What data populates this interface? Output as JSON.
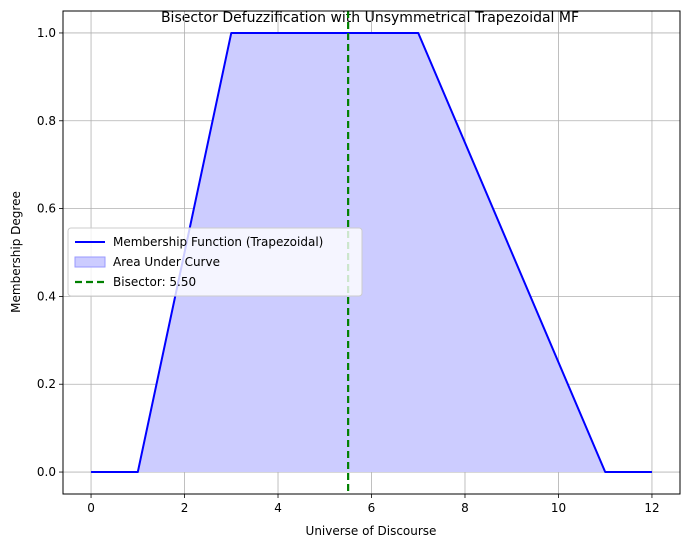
{
  "chart_data": {
    "type": "line",
    "title": "Bisector Defuzzification with Unsymmetrical Trapezoidal MF",
    "xlabel": "Universe of Discourse",
    "ylabel": "Membership Degree",
    "xlim": [
      -0.6,
      12.6
    ],
    "ylim": [
      -0.05,
      1.05
    ],
    "xticks": [
      0,
      2,
      4,
      6,
      8,
      10,
      12
    ],
    "yticks": [
      0.0,
      0.2,
      0.4,
      0.6,
      0.8,
      1.0
    ],
    "xtick_labels": [
      "0",
      "2",
      "4",
      "6",
      "8",
      "10",
      "12"
    ],
    "ytick_labels": [
      "0.0",
      "0.2",
      "0.4",
      "0.6",
      "0.8",
      "1.0"
    ],
    "grid": true,
    "legend_position": "center-left",
    "series": [
      {
        "name": "Membership Function (Trapezoidal)",
        "kind": "line",
        "color": "#0000ff",
        "x": [
          0,
          1,
          3,
          7,
          11,
          12
        ],
        "y": [
          0,
          0,
          1,
          1,
          0,
          0
        ]
      },
      {
        "name": "Area Under Curve",
        "kind": "area",
        "color": "#ccccff",
        "edge_color": "#9999ff",
        "x": [
          0,
          1,
          3,
          7,
          11,
          12
        ],
        "y": [
          0,
          0,
          1,
          1,
          0,
          0
        ]
      },
      {
        "name": "Bisector: 5.50",
        "kind": "vline",
        "color": "#008000",
        "x": 5.5
      }
    ]
  }
}
